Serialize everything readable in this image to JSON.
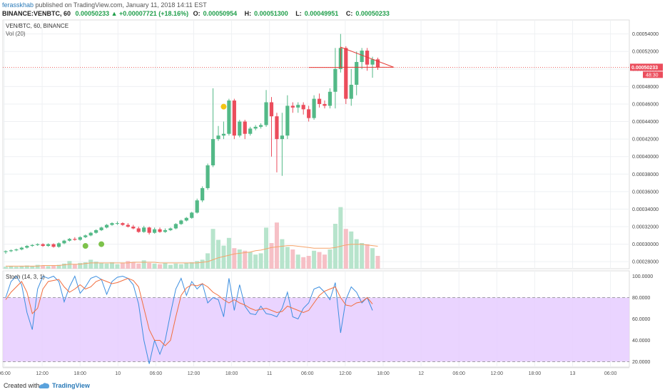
{
  "header": {
    "author": "ferasskhab",
    "published_text": "published on TradingView.com, January 11, 2018 14:11 EST",
    "symbol_interval": "BINANCE:VENBTC, 60",
    "change": "0.00050233 ▲ +0.00007721 (+18.16%)",
    "o_label": "O:",
    "o_value": "0.00050954",
    "h_label": "H:",
    "h_value": "0.00051300",
    "l_label": "L:",
    "l_value": "0.00049951",
    "c_label": "C:",
    "c_value": "0.00050233"
  },
  "chart_data": [
    {
      "type": "candlestick",
      "title": "VEN/BTC, 60, BINANCE",
      "volume_label": "Vol (20)",
      "y_ticks": [
        "0.00054000",
        "0.00052000",
        "0.00050000",
        "0.00048000",
        "0.00046000",
        "0.00044000",
        "0.00042000",
        "0.00040000",
        "0.00038000",
        "0.00036000",
        "0.00034000",
        "0.00032000",
        "0.00030000",
        "0.00028000"
      ],
      "ylim": [
        0.000272,
        0.000556
      ],
      "x_ticks": [
        "06:00",
        "12:00",
        "18:00",
        "10",
        "06:00",
        "12:00",
        "18:00",
        "11",
        "06:00",
        "12:00",
        "18:00",
        "12",
        "06:00",
        "12:00",
        "18:00",
        "13",
        "06:00"
      ],
      "last_price_label": "0.00050233",
      "countdown_label": "48:30",
      "grid": true,
      "candles": [
        [
          0.000291,
          0.000292,
          0.000289,
          0.000293
        ],
        [
          0.000292,
          0.000293,
          0.000291,
          0.000294
        ],
        [
          0.000293,
          0.000294,
          0.000292,
          0.000295
        ],
        [
          0.000294,
          0.000296,
          0.000293,
          0.000297
        ],
        [
          0.000296,
          0.000298,
          0.000295,
          0.000299
        ],
        [
          0.000298,
          0.000299,
          0.000297,
          0.0003
        ],
        [
          0.000299,
          0.0003,
          0.000298,
          0.000301
        ],
        [
          0.0003,
          0.000298,
          0.000297,
          0.000301
        ],
        [
          0.000298,
          0.0003,
          0.000297,
          0.000301
        ],
        [
          0.0003,
          0.000297,
          0.000296,
          0.000301
        ],
        [
          0.000297,
          0.000301,
          0.000296,
          0.000302
        ],
        [
          0.000301,
          0.000304,
          0.0003,
          0.000305
        ],
        [
          0.000304,
          0.000306,
          0.000303,
          0.000307
        ],
        [
          0.000306,
          0.000305,
          0.000304,
          0.000308
        ],
        [
          0.000305,
          0.000308,
          0.000304,
          0.000309
        ],
        [
          0.000308,
          0.00031,
          0.000307,
          0.000311
        ],
        [
          0.00031,
          0.000313,
          0.000309,
          0.000314
        ],
        [
          0.000313,
          0.000316,
          0.000312,
          0.000317
        ],
        [
          0.000316,
          0.000319,
          0.000315,
          0.00032
        ],
        [
          0.000319,
          0.000322,
          0.000318,
          0.000323
        ],
        [
          0.000322,
          0.000324,
          0.000321,
          0.000325
        ],
        [
          0.000324,
          0.000324,
          0.000322,
          0.000326
        ],
        [
          0.000324,
          0.000322,
          0.000321,
          0.000325
        ],
        [
          0.000322,
          0.00032,
          0.000319,
          0.000324
        ],
        [
          0.00032,
          0.000318,
          0.000317,
          0.000322
        ],
        [
          0.000318,
          0.000314,
          0.000313,
          0.00032
        ],
        [
          0.000314,
          0.000319,
          0.000313,
          0.000321
        ],
        [
          0.000319,
          0.000313,
          0.000311,
          0.00032
        ],
        [
          0.000313,
          0.000317,
          0.000312,
          0.000319
        ],
        [
          0.000317,
          0.000314,
          0.000313,
          0.000319
        ],
        [
          0.000314,
          0.000316,
          0.000313,
          0.000318
        ],
        [
          0.000316,
          0.000318,
          0.000315,
          0.000319
        ],
        [
          0.000318,
          0.000323,
          0.000317,
          0.000324
        ],
        [
          0.000323,
          0.000327,
          0.000322,
          0.000328
        ],
        [
          0.000327,
          0.00033,
          0.000326,
          0.000331
        ],
        [
          0.00033,
          0.000336,
          0.000329,
          0.000337
        ],
        [
          0.000336,
          0.00035,
          0.000335,
          0.000352
        ],
        [
          0.00035,
          0.000364,
          0.000348,
          0.000366
        ],
        [
          0.000364,
          0.00039,
          0.000362,
          0.000392
        ],
        [
          0.00039,
          0.00042,
          0.000388,
          0.000478
        ],
        [
          0.00042,
          0.000424,
          0.000418,
          0.000435
        ],
        [
          0.000424,
          0.000426,
          0.00042,
          0.00044
        ],
        [
          0.000426,
          0.000464,
          0.000424,
          0.000466
        ],
        [
          0.000464,
          0.000424,
          0.00042,
          0.000466
        ],
        [
          0.000424,
          0.00044,
          0.000422,
          0.000442
        ],
        [
          0.00044,
          0.000426,
          0.00042,
          0.000442
        ],
        [
          0.000426,
          0.000432,
          0.000424,
          0.000434
        ],
        [
          0.000432,
          0.000434,
          0.00043,
          0.000436
        ],
        [
          0.000434,
          0.000436,
          0.000432,
          0.000438
        ],
        [
          0.000436,
          0.000462,
          0.000434,
          0.000476
        ],
        [
          0.000462,
          0.000446,
          0.0004,
          0.000468
        ],
        [
          0.000446,
          0.00042,
          0.000382,
          0.00045
        ],
        [
          0.00042,
          0.000424,
          0.000378,
          0.00045
        ],
        [
          0.000424,
          0.000458,
          0.00042,
          0.00047
        ],
        [
          0.000458,
          0.000456,
          0.00045,
          0.000462
        ],
        [
          0.000456,
          0.000459,
          0.00045,
          0.000462
        ],
        [
          0.000459,
          0.000454,
          0.000448,
          0.000462
        ],
        [
          0.000454,
          0.000444,
          0.00044,
          0.000458
        ],
        [
          0.000444,
          0.000466,
          0.000442,
          0.00047
        ],
        [
          0.000466,
          0.00046,
          0.000456,
          0.000472
        ],
        [
          0.00046,
          0.000458,
          0.000455,
          0.000464
        ],
        [
          0.000458,
          0.000474,
          0.000455,
          0.000478
        ],
        [
          0.000474,
          0.0005,
          0.000455,
          0.000524
        ],
        [
          0.0005,
          0.000524,
          0.000496,
          0.00054
        ],
        [
          0.000524,
          0.000466,
          0.00046,
          0.000526
        ],
        [
          0.000466,
          0.000482,
          0.000458,
          0.0005
        ],
        [
          0.000482,
          0.000508,
          0.00047,
          0.00052
        ],
        [
          0.000508,
          0.000521,
          0.0005,
          0.000524
        ],
        [
          0.000521,
          0.000505,
          0.000498,
          0.000524
        ],
        [
          0.000505,
          0.000511,
          0.00049,
          0.000514
        ],
        [
          0.000511,
          0.000502,
          0.000499,
          0.000513
        ]
      ],
      "volumes": [
        3,
        4,
        3,
        4,
        5,
        4,
        6,
        5,
        4,
        5,
        6,
        8,
        12,
        7,
        9,
        10,
        14,
        11,
        9,
        8,
        10,
        7,
        9,
        12,
        10,
        8,
        13,
        9,
        8,
        7,
        9,
        6,
        8,
        7,
        9,
        10,
        12,
        14,
        24,
        62,
        45,
        36,
        48,
        32,
        30,
        28,
        26,
        22,
        24,
        64,
        40,
        72,
        46,
        34,
        30,
        22,
        18,
        20,
        28,
        26,
        22,
        30,
        70,
        96,
        62,
        58,
        46,
        40,
        38,
        32,
        20
      ],
      "vol_ma": [
        4,
        4,
        4,
        4,
        4,
        4,
        4,
        5,
        5,
        5,
        5,
        6,
        7,
        7,
        7,
        8,
        9,
        9,
        9,
        9,
        9,
        9,
        9,
        9,
        10,
        10,
        10,
        10,
        10,
        9,
        9,
        9,
        9,
        9,
        9,
        9,
        9,
        10,
        11,
        14,
        17,
        19,
        21,
        23,
        24,
        25,
        26,
        28,
        29,
        31,
        33,
        34,
        35,
        36,
        36,
        35,
        34,
        33,
        32,
        32,
        32,
        32,
        33,
        35,
        37,
        38,
        38,
        38,
        37,
        36,
        35
      ],
      "volume_ylim": [
        0,
        100
      ],
      "markers": [
        {
          "bar": 15,
          "price": 0.000298,
          "color": "#7dc24b"
        },
        {
          "bar": 18,
          "price": 0.0003,
          "color": "#7dc24b"
        },
        {
          "bar": 41,
          "price": 0.000457,
          "color": "#f2c412"
        }
      ],
      "annotations": {
        "horizontal_line_price": 0.000502,
        "triangle": [
          [
            63,
            0.000525
          ],
          [
            73,
            0.000502
          ],
          [
            63,
            0.000502
          ]
        ]
      },
      "colors": {
        "up": "#53b987",
        "down": "#eb4d5c",
        "up_vol": "#b7e4cc",
        "down_vol": "#f6c0c6",
        "vol_ma": "#f5a36a",
        "annotation": "#e53935"
      }
    },
    {
      "type": "line",
      "title": "Stoch (14, 3, 1)",
      "ylim": [
        15,
        105
      ],
      "y_ticks": [
        "100.0000",
        "80.0000",
        "60.0000",
        "40.0000",
        "20.0000"
      ],
      "band": [
        20,
        80
      ],
      "series": [
        {
          "values": [
            80,
            95,
            100,
            92,
            66,
            50,
            88,
            100,
            98,
            100,
            95,
            76,
            90,
            100,
            84,
            90,
            98,
            100,
            97,
            83,
            95,
            99,
            100,
            98,
            92,
            74,
            40,
            18,
            40,
            27,
            40,
            65,
            88,
            98,
            82,
            95,
            88,
            93,
            75,
            80,
            78,
            62,
            98,
            68,
            92,
            72,
            65,
            64,
            72,
            65,
            64,
            62,
            70,
            85,
            62,
            60,
            70,
            75,
            88,
            90,
            85,
            78,
            94,
            47,
            78,
            90,
            85,
            75,
            80,
            68
          ]
        },
        {
          "values": [
            78,
            85,
            90,
            95,
            85,
            65,
            70,
            88,
            95,
            96,
            97,
            90,
            85,
            88,
            92,
            88,
            90,
            95,
            97,
            95,
            93,
            94,
            96,
            98,
            96,
            90,
            70,
            50,
            40,
            40,
            35,
            40,
            62,
            82,
            89,
            92,
            91,
            93,
            90,
            85,
            82,
            78,
            75,
            78,
            75,
            73,
            70,
            68,
            69,
            70,
            68,
            66,
            67,
            72,
            70,
            68,
            66,
            68,
            75,
            82,
            86,
            88,
            90,
            80,
            73,
            72,
            75,
            76,
            80,
            74
          ]
        }
      ],
      "colors": {
        "series": [
          "#3d8fe0",
          "#f26d3d"
        ],
        "band_fill": "#e6ccff"
      }
    }
  ],
  "footer": {
    "created_with": "Created with",
    "brand": "TradingView"
  }
}
